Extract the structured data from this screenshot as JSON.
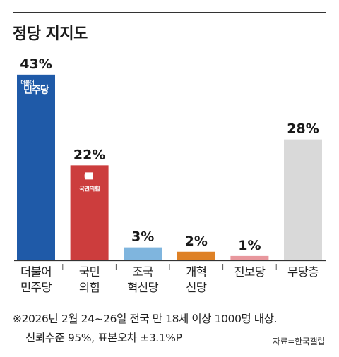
{
  "chart_data": {
    "type": "bar",
    "title": "정당 지지도",
    "categories": [
      [
        "더불어",
        "민주당"
      ],
      [
        "국민",
        "의힘"
      ],
      [
        "조국",
        "혁신당"
      ],
      [
        "개혁",
        "신당"
      ],
      [
        "진보당"
      ],
      [
        "무당층"
      ]
    ],
    "values": [
      43,
      22,
      3,
      2,
      1,
      28
    ],
    "value_labels": [
      "43%",
      "22%",
      "3%",
      "2%",
      "1%",
      "28%"
    ],
    "colors": [
      "#1f5aa8",
      "#cc3d3d",
      "#7fb5de",
      "#de8126",
      "#e8979d",
      "#d9d9d9"
    ],
    "logos": [
      {
        "bar": 0,
        "small": "더불어",
        "big": "민주당",
        "kind": "minju-logo"
      },
      {
        "bar": 1,
        "big": "국민의힘",
        "kind": "ppp-logo"
      }
    ],
    "ylim": [
      0,
      50
    ],
    "grid": false,
    "legend": "none"
  },
  "footnote": {
    "line1": "※2026년 2월 24~26일 전국 만 18세 이상 1000명 대상.",
    "line2": "신뢰수준 95%, 표본오차 ±3.1%P",
    "source": "자료=한국갤럽"
  }
}
